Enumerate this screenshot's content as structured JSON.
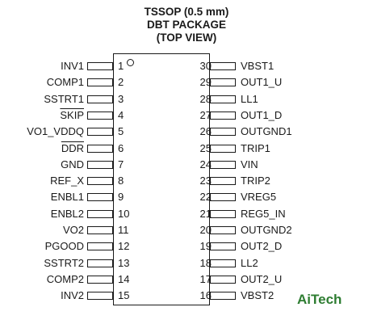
{
  "header": {
    "line1": "TSSOP (0.5 mm)",
    "line2": "DBT PACKAGE",
    "line3": "(TOP VIEW)"
  },
  "left_pins": [
    {
      "num": "1",
      "name": "INV1",
      "overbar": false
    },
    {
      "num": "2",
      "name": "COMP1",
      "overbar": false
    },
    {
      "num": "3",
      "name": "SSTRT1",
      "overbar": false
    },
    {
      "num": "4",
      "name": "SKIP",
      "overbar": true
    },
    {
      "num": "5",
      "name": "VO1_VDDQ",
      "overbar": false
    },
    {
      "num": "6",
      "name": "DDR",
      "overbar": true
    },
    {
      "num": "7",
      "name": "GND",
      "overbar": false
    },
    {
      "num": "8",
      "name": "REF_X",
      "overbar": false
    },
    {
      "num": "9",
      "name": "ENBL1",
      "overbar": false
    },
    {
      "num": "10",
      "name": "ENBL2",
      "overbar": false
    },
    {
      "num": "11",
      "name": "VO2",
      "overbar": false
    },
    {
      "num": "12",
      "name": "PGOOD",
      "overbar": false
    },
    {
      "num": "13",
      "name": "SSTRT2",
      "overbar": false
    },
    {
      "num": "14",
      "name": "COMP2",
      "overbar": false
    },
    {
      "num": "15",
      "name": "INV2",
      "overbar": false
    }
  ],
  "right_pins": [
    {
      "num": "30",
      "name": "VBST1"
    },
    {
      "num": "29",
      "name": "OUT1_U"
    },
    {
      "num": "28",
      "name": "LL1"
    },
    {
      "num": "27",
      "name": "OUT1_D"
    },
    {
      "num": "26",
      "name": "OUTGND1"
    },
    {
      "num": "25",
      "name": "TRIP1"
    },
    {
      "num": "24",
      "name": "VIN"
    },
    {
      "num": "23",
      "name": "TRIP2"
    },
    {
      "num": "22",
      "name": "VREG5"
    },
    {
      "num": "21",
      "name": "REG5_IN"
    },
    {
      "num": "20",
      "name": "OUTGND2"
    },
    {
      "num": "19",
      "name": "OUT2_D"
    },
    {
      "num": "18",
      "name": "LL2"
    },
    {
      "num": "17",
      "name": "OUT2_U"
    },
    {
      "num": "16",
      "name": "VBST2"
    }
  ],
  "watermark": "AiTech"
}
